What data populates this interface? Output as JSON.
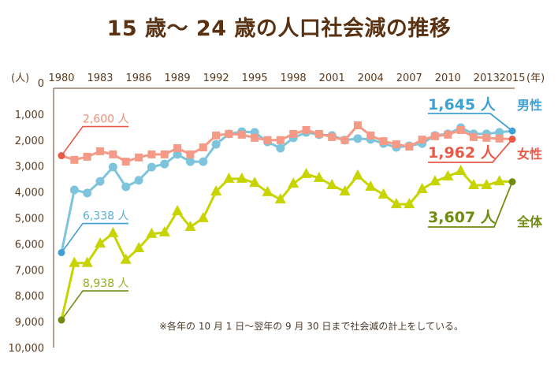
{
  "chart_data": {
    "type": "line",
    "title": "15 歳～ 24 歳の人口社会減の推移",
    "xlabel": "(年)",
    "ylabel": "(人)",
    "ylim": [
      0,
      10000
    ],
    "y_inverted": true,
    "y_ticks": [
      "0",
      "1,000",
      "2,000",
      "3,000",
      "4,000",
      "5,000",
      "6,000",
      "7,000",
      "8,000",
      "9,000",
      "10,000"
    ],
    "x_ticks": [
      "1980",
      "1983",
      "1986",
      "1989",
      "1992",
      "1995",
      "1998",
      "2001",
      "2004",
      "2007",
      "2010",
      "2013",
      "2015"
    ],
    "x": [
      1980,
      1981,
      1982,
      1983,
      1984,
      1985,
      1986,
      1987,
      1988,
      1989,
      1990,
      1991,
      1992,
      1993,
      1994,
      1995,
      1996,
      1997,
      1998,
      1999,
      2000,
      2001,
      2002,
      2003,
      2004,
      2005,
      2006,
      2007,
      2008,
      2009,
      2010,
      2011,
      2012,
      2013,
      2014,
      2015
    ],
    "series": [
      {
        "name": "女性",
        "color": "#f59a86",
        "marker": "square",
        "values": [
          2600,
          2760,
          2640,
          2430,
          2550,
          2830,
          2670,
          2550,
          2550,
          2310,
          2550,
          2280,
          1820,
          1760,
          1790,
          1910,
          2000,
          2000,
          1760,
          1610,
          1760,
          1880,
          2000,
          1430,
          1820,
          2040,
          2160,
          2250,
          1980,
          1850,
          1790,
          1610,
          1880,
          1910,
          1940,
          1962
        ],
        "start_label": "2,600 人",
        "end_label": "1,962 人"
      },
      {
        "name": "男性",
        "color": "#7ec4dc",
        "marker": "circle",
        "values": [
          6338,
          3920,
          4040,
          3590,
          3040,
          3800,
          3550,
          3040,
          2920,
          2550,
          2830,
          2830,
          2160,
          1760,
          1670,
          1700,
          2070,
          2310,
          1910,
          1700,
          1790,
          1820,
          2000,
          1940,
          1970,
          2130,
          2280,
          2220,
          2130,
          1820,
          1760,
          1520,
          1760,
          1760,
          1700,
          1645
        ],
        "start_label": "6,338 人",
        "end_label": "1,645 人"
      },
      {
        "name": "全体",
        "color": "#c8d400",
        "marker": "triangle",
        "values": [
          8938,
          6740,
          6740,
          5990,
          5590,
          6620,
          6170,
          5620,
          5560,
          4740,
          5350,
          5010,
          3980,
          3490,
          3490,
          3650,
          4010,
          4290,
          3680,
          3310,
          3460,
          3740,
          3980,
          3370,
          3800,
          4100,
          4470,
          4470,
          3890,
          3590,
          3400,
          3190,
          3740,
          3740,
          3590,
          3607
        ],
        "start_label": "8,938 人",
        "end_label": "3,607 人"
      }
    ],
    "legend": [
      {
        "name": "男性",
        "color": "#3fa1d2"
      },
      {
        "name": "女性",
        "color": "#e85a48"
      },
      {
        "name": "全体",
        "color": "#6f8c10"
      }
    ],
    "annotation": "※各年の 10 月 1 日～翌年の 9 月 30 日まで社会減の計上をしている。",
    "grid": false
  }
}
